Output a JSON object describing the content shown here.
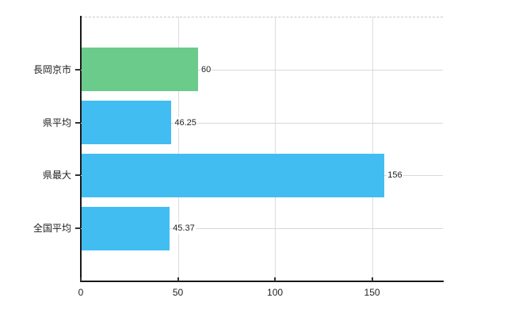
{
  "meta": {
    "background_color": "#ffffff",
    "text_color": "#1f1f1f"
  },
  "colors": {
    "axis": "#1a1a1a",
    "vertical_gridline": "#e0dce0",
    "horizontal_gridline": "#d2dcd2",
    "top_border_dashed": "#ccc6cc",
    "bar_green": "#6bcb8b",
    "bar_blue": "#42bdf2"
  },
  "chart_data": {
    "type": "bar",
    "orientation": "horizontal",
    "title": "",
    "xlabel": "",
    "ylabel": "",
    "categories": [
      "長岡京市",
      "県平均",
      "県最大",
      "全国平均"
    ],
    "values": [
      60,
      46.25,
      156,
      45.37
    ],
    "value_labels": [
      "60",
      "46.25",
      "156",
      "45.37"
    ],
    "bar_colors": [
      "#6bcb8b",
      "#42bdf2",
      "#42bdf2",
      "#42bdf2"
    ],
    "x_ticks": [
      0,
      50,
      100,
      150
    ],
    "x_tick_labels": [
      "0",
      "50",
      "100",
      "150"
    ],
    "xlim": [
      0,
      186.5
    ],
    "grid": true,
    "gridlines": "vertical at x ticks, horizontal at category centers, dashed top border",
    "legend_position": "none"
  }
}
